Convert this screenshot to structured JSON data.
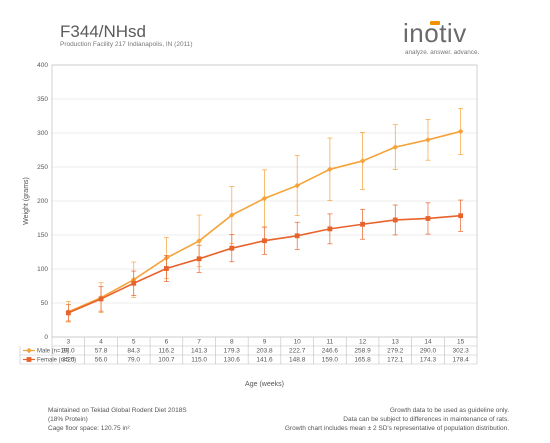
{
  "header": {
    "title": "F344/NHsd",
    "subtitle": "Production Facility 217 Indianapolis, IN (2011)"
  },
  "logo": {
    "word": "inotiv",
    "tagline": "analyze. answer. advance.",
    "accent_color": "#f39200"
  },
  "chart_data": {
    "type": "line",
    "categories": [
      "3",
      "4",
      "5",
      "6",
      "7",
      "8",
      "9",
      "10",
      "11",
      "12",
      "13",
      "14",
      "15"
    ],
    "xlabel": "Age (weeks)",
    "ylabel": "Weight (grams)",
    "ylim": [
      0,
      400
    ],
    "yticks": [
      0,
      50,
      100,
      150,
      200,
      250,
      300,
      350,
      400
    ],
    "grid": true,
    "series": [
      {
        "name": "Male (n=19)",
        "color": "#f5a33a",
        "marker": "diamond",
        "values": [
          37.0,
          57.8,
          84.3,
          116.2,
          141.3,
          179.3,
          203.8,
          222.7,
          246.6,
          258.9,
          279.2,
          290.0,
          302.3
        ],
        "value_labels": [
          "37.0",
          "57.8",
          "84.3",
          "116.2",
          "141.3",
          "179.3",
          "203.8",
          "222.7",
          "246.6",
          "258.9",
          "279.2",
          "290.0",
          "302.3"
        ],
        "error": [
          15,
          22,
          26,
          30,
          38,
          42,
          42,
          44,
          46,
          42,
          33,
          30,
          34
        ]
      },
      {
        "name": "Female (n=20)",
        "color": "#e8632b",
        "marker": "square",
        "values": [
          35.5,
          56.0,
          79.0,
          100.7,
          115.0,
          130.6,
          141.6,
          148.8,
          159.0,
          165.8,
          172.1,
          174.3,
          178.4
        ],
        "value_labels": [
          "35.5",
          "56.0",
          "79.0",
          "100.7",
          "115.0",
          "130.6",
          "141.6",
          "148.8",
          "159.0",
          "165.8",
          "172.1",
          "174.3",
          "178.4"
        ],
        "error": [
          12,
          18,
          18,
          19,
          20,
          20,
          20,
          20,
          22,
          22,
          22,
          23,
          23
        ]
      }
    ]
  },
  "footer": {
    "left": [
      "Maintained on Teklad Global Rodent Diet 2018S",
      "(18% Protein)",
      "Cage floor space: 120.75 in²"
    ],
    "right": [
      "Growth data to be used as guideline only.",
      "Data can be subject to differences in maintenance of rats.",
      "Growth chart includes mean ± 2 SD's representative of population distribution."
    ]
  }
}
